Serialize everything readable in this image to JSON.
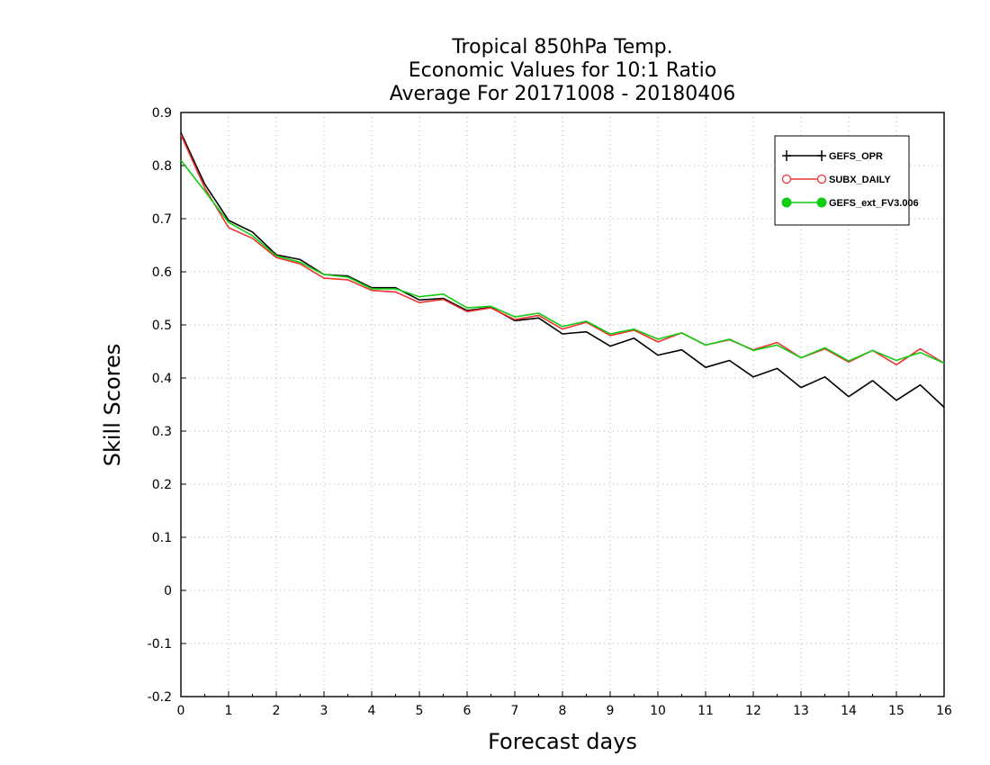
{
  "chart_data": {
    "type": "line",
    "title": [
      "Tropical 850hPa Temp.",
      "Economic Values for 10:1 Ratio",
      "Average For 20171008 - 20180406"
    ],
    "xlabel": "Forecast days",
    "ylabel": "Skill Scores",
    "xlim": [
      0,
      16
    ],
    "ylim": [
      -0.2,
      0.9
    ],
    "xticks": [
      "0",
      "1",
      "2",
      "3",
      "4",
      "5",
      "6",
      "7",
      "8",
      "9",
      "10",
      "11",
      "12",
      "13",
      "14",
      "15",
      "16"
    ],
    "yticks": [
      "-0.2",
      "-0.1",
      "0",
      "0.1",
      "0.2",
      "0.3",
      "0.4",
      "0.5",
      "0.6",
      "0.7",
      "0.8",
      "0.9"
    ],
    "grid": true,
    "legend_position": "top-right",
    "x": [
      0,
      0.5,
      1,
      1.5,
      2,
      2.5,
      3,
      3.5,
      4,
      4.5,
      5,
      5.5,
      6,
      6.5,
      7,
      7.5,
      8,
      8.5,
      9,
      9.5,
      10,
      10.5,
      11,
      11.5,
      12,
      12.5,
      13,
      13.5,
      14,
      14.5,
      15,
      15.5,
      16
    ],
    "series": [
      {
        "name": "GEFS_OPR",
        "color": "#000000",
        "marker": "plus",
        "values": [
          0.862,
          0.765,
          0.697,
          0.675,
          0.632,
          0.623,
          0.595,
          0.592,
          0.57,
          0.57,
          0.547,
          0.55,
          0.527,
          0.533,
          0.508,
          0.513,
          0.483,
          0.487,
          0.46,
          0.475,
          0.443,
          0.453,
          0.42,
          0.433,
          0.402,
          0.418,
          0.382,
          0.402,
          0.365,
          0.395,
          0.358,
          0.387,
          0.345
        ]
      },
      {
        "name": "SUBX_DAILY",
        "color": "#ee3333",
        "marker": "open-circle",
        "values": [
          0.858,
          0.758,
          0.683,
          0.663,
          0.627,
          0.615,
          0.588,
          0.585,
          0.565,
          0.562,
          0.542,
          0.548,
          0.525,
          0.532,
          0.51,
          0.518,
          0.492,
          0.505,
          0.48,
          0.49,
          0.468,
          0.485,
          0.462,
          0.472,
          0.453,
          0.467,
          0.438,
          0.455,
          0.43,
          0.452,
          0.425,
          0.455,
          0.428
        ]
      },
      {
        "name": "GEFS_ext_FV3.006",
        "color": "#11cc11",
        "marker": "filled-circle",
        "values": [
          0.81,
          0.752,
          0.693,
          0.668,
          0.63,
          0.618,
          0.595,
          0.59,
          0.568,
          0.568,
          0.553,
          0.558,
          0.532,
          0.535,
          0.515,
          0.522,
          0.497,
          0.507,
          0.483,
          0.492,
          0.473,
          0.485,
          0.462,
          0.473,
          0.452,
          0.462,
          0.438,
          0.457,
          0.432,
          0.452,
          0.433,
          0.448,
          0.428
        ]
      }
    ]
  }
}
